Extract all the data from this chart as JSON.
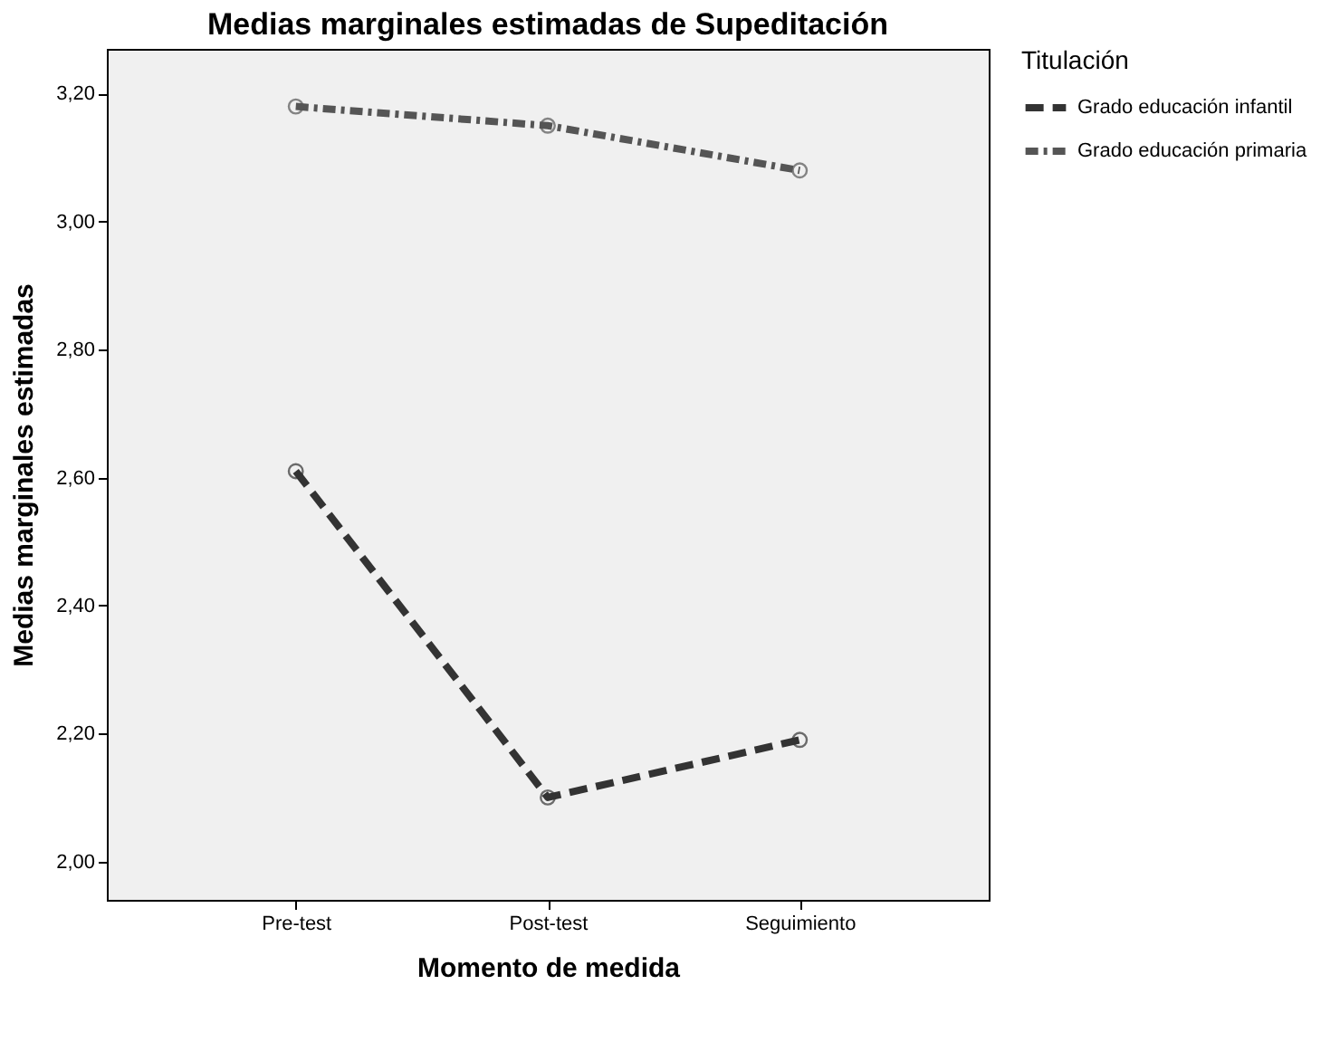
{
  "chart_data": {
    "type": "line",
    "title": "Medias marginales estimadas de Supeditación",
    "xlabel": "Momento de medida",
    "ylabel": "Medias marginales estimadas",
    "legend_title": "Titulación",
    "categories": [
      "Pre-test",
      "Post-test",
      "Seguimiento"
    ],
    "series": [
      {
        "name": "Grado educación infantil",
        "color": "#333333",
        "line_style": "dashed",
        "values": [
          2.61,
          2.1,
          2.19
        ]
      },
      {
        "name": "Grado educación primaria",
        "color": "#555555",
        "line_style": "dotted",
        "values": [
          3.18,
          3.15,
          3.08
        ]
      }
    ],
    "ylim": [
      1.94,
      3.27
    ],
    "yticks": [
      {
        "value": 2.0,
        "label": "2,00"
      },
      {
        "value": 2.2,
        "label": "2,20"
      },
      {
        "value": 2.4,
        "label": "2,40"
      },
      {
        "value": 2.6,
        "label": "2,60"
      },
      {
        "value": 2.8,
        "label": "2,80"
      },
      {
        "value": 3.0,
        "label": "3,00"
      },
      {
        "value": 3.2,
        "label": "3,20"
      }
    ],
    "grid": false,
    "legend": "top right",
    "marker": "circle"
  }
}
